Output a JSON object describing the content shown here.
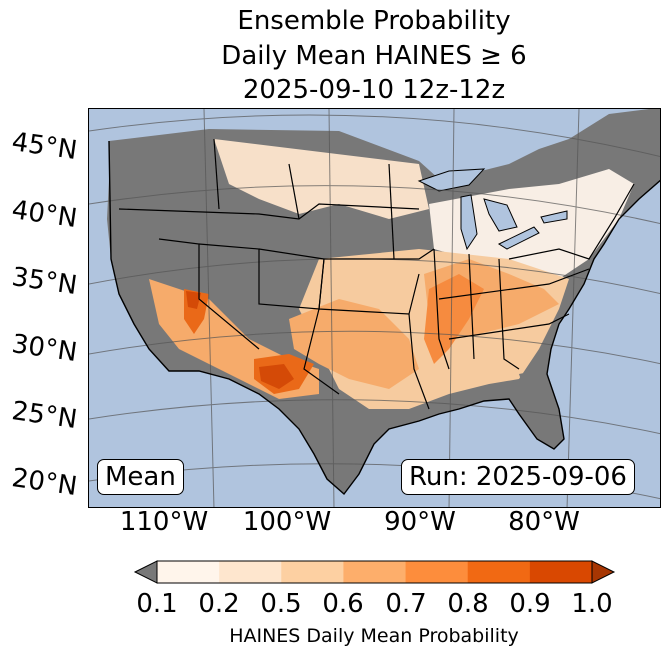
{
  "title": {
    "line1": "Ensemble Probability",
    "line2": "Daily Mean HAINES ≥ 6",
    "line3": "2025-09-10 12z-12z"
  },
  "map": {
    "stat_label": "Mean",
    "run_label": "Run: 2025-09-06",
    "latitude_labels": [
      "45°N",
      "40°N",
      "35°N",
      "30°N",
      "25°N",
      "20°N"
    ],
    "longitude_labels": [
      "110°W",
      "100°W",
      "90°W",
      "80°W"
    ],
    "colors": {
      "ocean": "#b0c4de",
      "below_threshold": "#787878",
      "borders": "#000000"
    }
  },
  "colorbar": {
    "label": "HAINES Daily Mean Probability",
    "ticks": [
      "0.1",
      "0.2",
      "0.5",
      "0.6",
      "0.7",
      "0.8",
      "0.9",
      "1.0"
    ],
    "colors": [
      "#fff5eb",
      "#fee6ce",
      "#fdd0a2",
      "#fdae6b",
      "#fd8d3c",
      "#f16913",
      "#d94801"
    ],
    "under_color": "#787878",
    "over_color": "#a63603"
  }
}
